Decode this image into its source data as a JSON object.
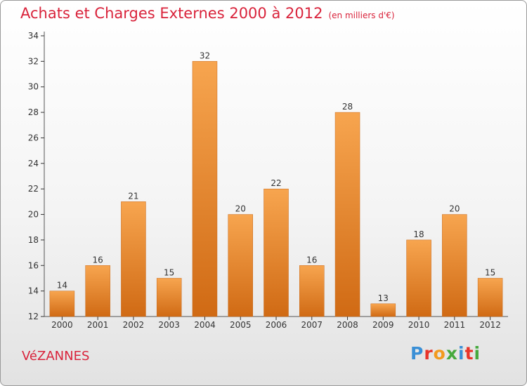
{
  "header": {
    "title": "Achats et Charges Externes 2000 à 2012",
    "subtitle": "(en milliers d'€)"
  },
  "town": "VéZANNES",
  "logo": {
    "text": "Proxiti",
    "colors": [
      "#3a8fd6",
      "#e8342a",
      "#f29a1e",
      "#45a93d",
      "#3a8fd6",
      "#e8342a",
      "#45a93d"
    ]
  },
  "colors": {
    "bar_top": "#f7a54f",
    "bar_bottom": "#d06a14",
    "axis": "#555555",
    "grid_tick": "#333333",
    "accent": "#d9233b"
  },
  "chart_data": {
    "type": "bar",
    "categories": [
      "2000",
      "2001",
      "2002",
      "2003",
      "2004",
      "2005",
      "2006",
      "2007",
      "2008",
      "2009",
      "2010",
      "2011",
      "2012"
    ],
    "values": [
      14,
      16,
      21,
      15,
      32,
      20,
      22,
      16,
      28,
      13,
      18,
      20,
      15
    ],
    "ylim": [
      12,
      34
    ],
    "yticks": [
      12,
      14,
      16,
      18,
      20,
      22,
      24,
      26,
      28,
      30,
      32,
      34
    ],
    "xlabel": "",
    "ylabel": "",
    "grid": false,
    "data_labels": true
  }
}
